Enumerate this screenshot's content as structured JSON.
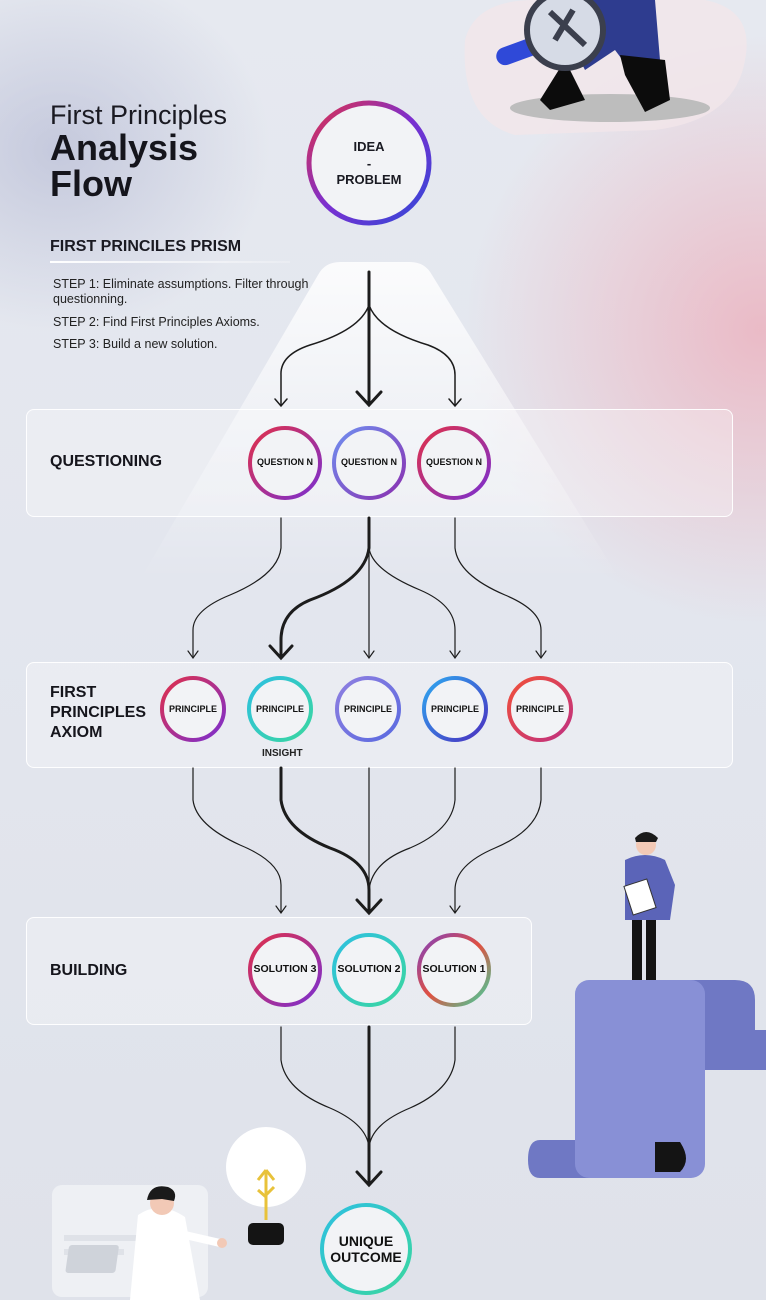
{
  "header": {
    "title_line1": "First Principles",
    "title_line2": "Analysis",
    "title_line3": "Flow"
  },
  "prism": {
    "heading": "FIRST PRINCILES PRISM",
    "steps": [
      "STEP 1: Eliminate assumptions. Filter through questionning.",
      "STEP 2: Find First Principles Axioms.",
      "STEP 3: Build a new solution."
    ]
  },
  "start_node": {
    "line1": "IDEA",
    "line2": "-",
    "line3": "PROBLEM"
  },
  "questioning": {
    "label": "QUESTIONING",
    "nodes": [
      "QUESTION N",
      "QUESTION N",
      "QUESTION N"
    ]
  },
  "axiom": {
    "label_line1": "FIRST",
    "label_line2": "PRINCIPLES",
    "label_line3": "AXIOM",
    "nodes": [
      "PRINCIPLE",
      "PRINCIPLE",
      "PRINCIPLE",
      "PRINCIPLE",
      "PRINCIPLE"
    ],
    "insight": "INSIGHT"
  },
  "building": {
    "label": "BUILDING",
    "nodes": [
      "SOLUTION 3",
      "SOLUTION 2",
      "SOLUTION 1"
    ]
  },
  "outcome": {
    "line1": "UNIQUE",
    "line2": "OUTCOME"
  },
  "colors": {
    "red": "#e0304a",
    "purple": "#7b2fd0",
    "blue": "#2f49d8",
    "cyan": "#2ec0e0",
    "green": "#3ad6a0",
    "figure_blue": "#6f78c4"
  }
}
